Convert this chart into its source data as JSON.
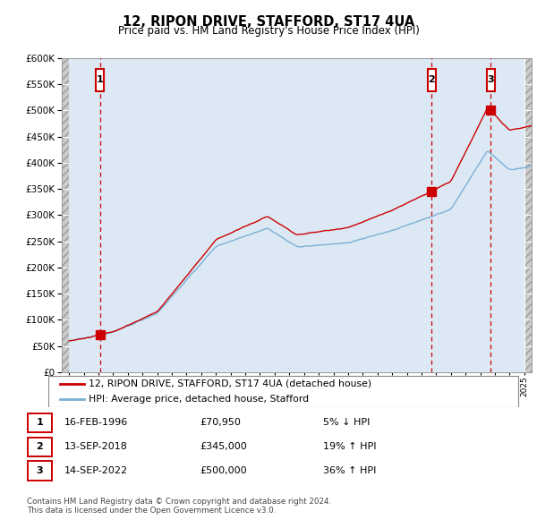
{
  "title": "12, RIPON DRIVE, STAFFORD, ST17 4UA",
  "subtitle": "Price paid vs. HM Land Registry's House Price Index (HPI)",
  "sales": [
    {
      "date": 1996.12,
      "price": 70950,
      "label": "1"
    },
    {
      "date": 2018.7,
      "price": 345000,
      "label": "2"
    },
    {
      "date": 2022.7,
      "price": 500000,
      "label": "3"
    }
  ],
  "legend_line1": "12, RIPON DRIVE, STAFFORD, ST17 4UA (detached house)",
  "legend_line2": "HPI: Average price, detached house, Stafford",
  "table_rows": [
    [
      "1",
      "16-FEB-1996",
      "£70,950",
      "5% ↓ HPI"
    ],
    [
      "2",
      "13-SEP-2018",
      "£345,000",
      "19% ↑ HPI"
    ],
    [
      "3",
      "14-SEP-2022",
      "£500,000",
      "36% ↑ HPI"
    ]
  ],
  "footnote1": "Contains HM Land Registry data © Crown copyright and database right 2024.",
  "footnote2": "This data is licensed under the Open Government Licence v3.0.",
  "ylim": [
    0,
    600000
  ],
  "xlim": [
    1993.5,
    2025.5
  ],
  "chart_bg": "#dce9f5",
  "red_line": "#cc0000",
  "blue_line": "#7bafd4",
  "grid_color": "#ffffff",
  "marker_box_color": "#cc0000"
}
